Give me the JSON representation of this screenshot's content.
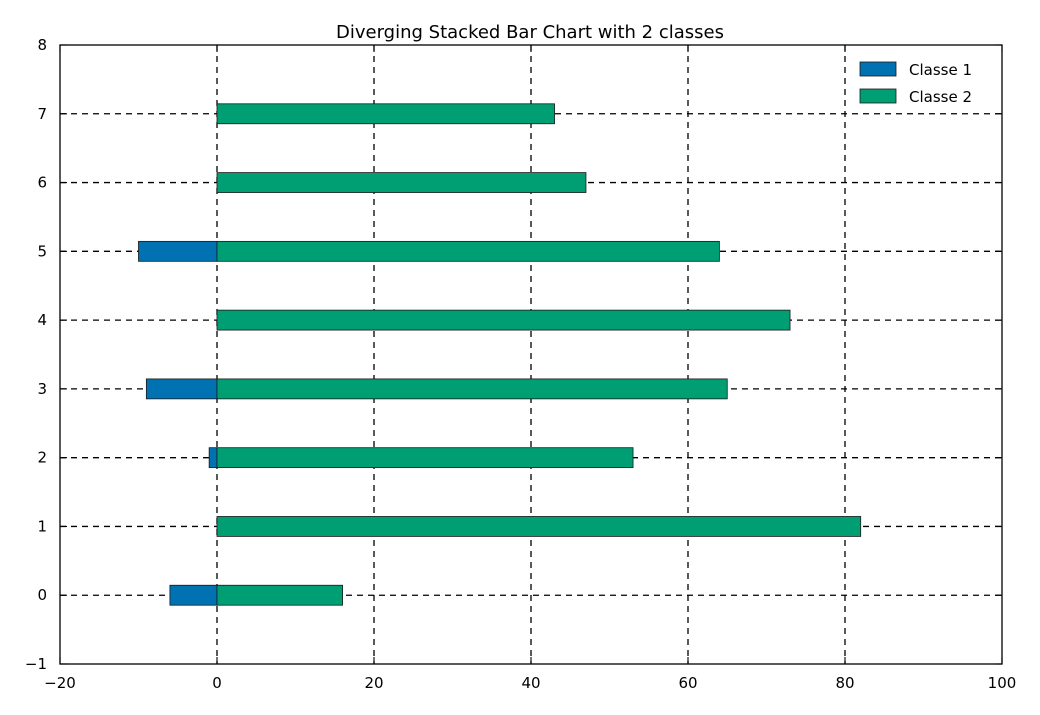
{
  "chart_data": {
    "type": "bar",
    "orientation": "horizontal",
    "stacked": "diverging",
    "title": "Diverging Stacked Bar Chart with 2 classes",
    "xlabel": "",
    "ylabel": "",
    "xlim": [
      -20,
      100
    ],
    "ylim": [
      -1,
      8
    ],
    "xticks": [
      -20,
      0,
      20,
      40,
      60,
      80,
      100
    ],
    "yticks": [
      -1,
      0,
      1,
      2,
      3,
      4,
      5,
      6,
      7,
      8
    ],
    "categories": [
      0,
      1,
      2,
      3,
      4,
      5,
      6,
      7
    ],
    "grid": true,
    "legend_position": "top-right",
    "series": [
      {
        "name": "Classe 1",
        "color": "#0072b2",
        "values": [
          -6,
          0,
          -1,
          -9,
          0,
          -10,
          0,
          0
        ]
      },
      {
        "name": "Classe 2",
        "color": "#009e73",
        "values": [
          16,
          82,
          53,
          65,
          73,
          64,
          47,
          43
        ]
      }
    ]
  }
}
